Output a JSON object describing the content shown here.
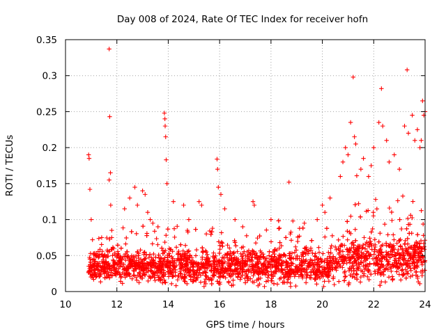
{
  "chart_data": {
    "type": "scatter",
    "title": "Day 008 of 2024, Rate Of TEC Index for receiver hofn",
    "xlabel": "GPS time / hours",
    "ylabel": "ROTI / TECUs",
    "xlim": [
      10,
      24
    ],
    "ylim": [
      0,
      0.35
    ],
    "xticks": [
      10,
      12,
      14,
      16,
      18,
      20,
      22,
      24
    ],
    "xtick_labels": [
      "10",
      "12",
      "14",
      "16",
      "18",
      "20",
      "22",
      "24"
    ],
    "yticks": [
      0,
      0.05,
      0.1,
      0.15,
      0.2,
      0.25,
      0.3,
      0.35
    ],
    "ytick_labels": [
      "0",
      "0.05",
      "0.1",
      "0.15",
      "0.2",
      "0.25",
      "0.3",
      "0.35"
    ],
    "grid": true,
    "marker": "+",
    "color": "#ff0000",
    "series": [
      {
        "name": "ROTI",
        "x": [
          10.9,
          10.92,
          10.95,
          11.0,
          11.05,
          11.7,
          11.72,
          11.75,
          11.7,
          11.76,
          11.8,
          12.3,
          12.5,
          12.7,
          12.8,
          13.0,
          13.1,
          13.2,
          13.3,
          13.4,
          13.6,
          13.85,
          13.87,
          13.88,
          13.9,
          13.92,
          13.95,
          14.2,
          14.6,
          14.8,
          15.2,
          15.3,
          15.9,
          15.92,
          15.95,
          16.05,
          16.2,
          16.6,
          16.9,
          17.3,
          17.35,
          18.0,
          18.7,
          18.75,
          19.3,
          19.8,
          20.0,
          20.1,
          20.3,
          20.7,
          20.8,
          20.9,
          21.0,
          21.1,
          21.2,
          21.25,
          21.3,
          21.5,
          21.6,
          21.8,
          21.9,
          22.0,
          22.2,
          22.3,
          22.35,
          22.5,
          22.6,
          22.8,
          23.0,
          23.2,
          23.3,
          23.35,
          23.5,
          23.6,
          23.7,
          23.8,
          23.85,
          23.9,
          23.95,
          24.0
        ],
        "y": [
          0.19,
          0.185,
          0.142,
          0.1,
          0.072,
          0.337,
          0.243,
          0.165,
          0.155,
          0.12,
          0.085,
          0.115,
          0.13,
          0.145,
          0.12,
          0.14,
          0.135,
          0.11,
          0.1,
          0.095,
          0.09,
          0.248,
          0.24,
          0.23,
          0.215,
          0.183,
          0.15,
          0.125,
          0.12,
          0.1,
          0.125,
          0.12,
          0.184,
          0.17,
          0.145,
          0.135,
          0.115,
          0.1,
          0.09,
          0.125,
          0.12,
          0.1,
          0.152,
          0.08,
          0.095,
          0.1,
          0.12,
          0.11,
          0.13,
          0.16,
          0.18,
          0.2,
          0.19,
          0.235,
          0.298,
          0.215,
          0.205,
          0.17,
          0.185,
          0.16,
          0.175,
          0.2,
          0.235,
          0.282,
          0.23,
          0.21,
          0.18,
          0.19,
          0.17,
          0.23,
          0.308,
          0.22,
          0.245,
          0.21,
          0.225,
          0.2,
          0.21,
          0.265,
          0.245,
          0.25
        ]
      }
    ],
    "background_noise": {
      "description_free_density_note": "dense band of points between 0.01 and 0.08 from x=10.9 to x=24",
      "x_range": [
        10.9,
        24.0
      ],
      "y_range": [
        0.01,
        0.08
      ]
    }
  }
}
